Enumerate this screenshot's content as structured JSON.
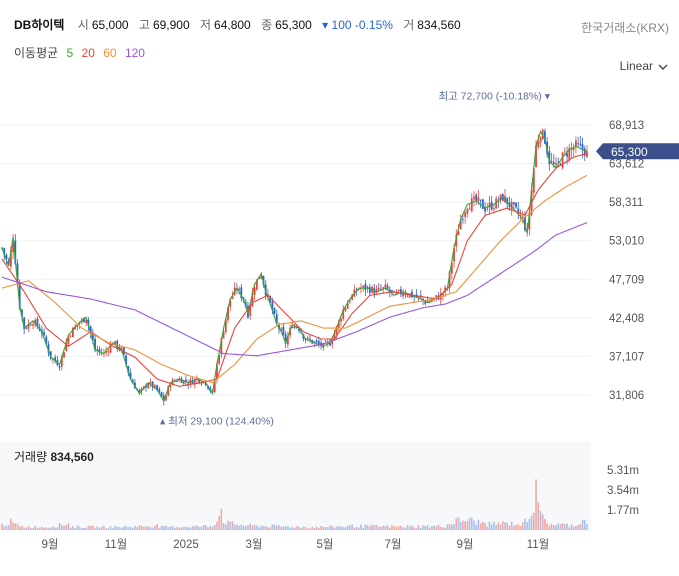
{
  "header": {
    "name": "DB하이텍",
    "open_label": "시",
    "open": "65,000",
    "high_label": "고",
    "high": "69,900",
    "low_label": "저",
    "low": "64,800",
    "close_label": "종",
    "close": "65,300",
    "change": "▾ 100 -0.15%",
    "volume_label": "거",
    "volume": "834,560",
    "exchange": "한국거래소(KRX)"
  },
  "moving_average": {
    "label": "이동평균",
    "periods": [
      {
        "value": "5",
        "color": "#3aa33a"
      },
      {
        "value": "20",
        "color": "#e8453c"
      },
      {
        "value": "60",
        "color": "#f0923a"
      },
      {
        "value": "120",
        "color": "#9b59d6"
      }
    ]
  },
  "scale_mode": "Linear",
  "volume_panel": {
    "label": "거래량",
    "value": "834,560"
  },
  "chart_data": {
    "type": "candlestick",
    "colors": {
      "up": "#e8453c",
      "down": "#2a63d4",
      "ma5": "#3aa33a",
      "ma20": "#e8453c",
      "ma60": "#f0923a",
      "ma120": "#9b59d6"
    },
    "y_ticks": [
      "68,913",
      "63,612",
      "58,311",
      "53,010",
      "47,709",
      "42,408",
      "37,107",
      "31,806"
    ],
    "y_tick_values": [
      68913,
      63612,
      58311,
      53010,
      47709,
      42408,
      37107,
      31806
    ],
    "volume_ticks": [
      "5.31m",
      "3.54m",
      "1.77m"
    ],
    "volume_tick_values": [
      5.31,
      3.54,
      1.77
    ],
    "x_ticks": [
      "9월",
      "11월",
      "2025",
      "3월",
      "5월",
      "7월",
      "9월",
      "11월"
    ],
    "last_price_label": "65,300",
    "last_price": 65300,
    "max_annotation": "최고 72,700 (-10.18%)",
    "max_value": 72700,
    "min_annotation": "최저 29,100 (124.40%)",
    "min_value": 29100,
    "price_keyframes": [
      [
        0,
        52000
      ],
      [
        3,
        49500
      ],
      [
        5,
        53500
      ],
      [
        8,
        44000
      ],
      [
        10,
        41000
      ],
      [
        14,
        42000
      ],
      [
        18,
        40500
      ],
      [
        22,
        37000
      ],
      [
        26,
        36000
      ],
      [
        30,
        40000
      ],
      [
        34,
        41500
      ],
      [
        38,
        42500
      ],
      [
        42,
        38000
      ],
      [
        46,
        37500
      ],
      [
        50,
        39000
      ],
      [
        54,
        38000
      ],
      [
        58,
        34000
      ],
      [
        62,
        32000
      ],
      [
        66,
        33500
      ],
      [
        70,
        32500
      ],
      [
        73,
        31000
      ],
      [
        76,
        33500
      ],
      [
        80,
        34000
      ],
      [
        84,
        33500
      ],
      [
        88,
        34000
      ],
      [
        92,
        33500
      ],
      [
        95,
        32000
      ],
      [
        97,
        36000
      ],
      [
        100,
        41000
      ],
      [
        103,
        45000
      ],
      [
        106,
        46500
      ],
      [
        109,
        45000
      ],
      [
        111,
        43000
      ],
      [
        114,
        47000
      ],
      [
        117,
        48500
      ],
      [
        119,
        46000
      ],
      [
        122,
        43500
      ],
      [
        124,
        41500
      ],
      [
        126,
        40500
      ],
      [
        128,
        39000
      ],
      [
        131,
        41500
      ],
      [
        134,
        41000
      ],
      [
        137,
        39500
      ],
      [
        141,
        39000
      ],
      [
        145,
        38500
      ],
      [
        148,
        39000
      ],
      [
        151,
        41000
      ],
      [
        154,
        43500
      ],
      [
        157,
        45000
      ],
      [
        161,
        46500
      ],
      [
        165,
        46500
      ],
      [
        169,
        46000
      ],
      [
        173,
        46500
      ],
      [
        177,
        45500
      ],
      [
        181,
        46000
      ],
      [
        185,
        45500
      ],
      [
        189,
        45000
      ],
      [
        192,
        44500
      ],
      [
        195,
        45000
      ],
      [
        198,
        45500
      ],
      [
        201,
        46500
      ],
      [
        204,
        52000
      ],
      [
        207,
        56000
      ],
      [
        210,
        58000
      ],
      [
        214,
        58500
      ],
      [
        218,
        57500
      ],
      [
        222,
        58000
      ],
      [
        226,
        59000
      ],
      [
        229,
        58000
      ],
      [
        232,
        57000
      ],
      [
        235,
        56000
      ],
      [
        237,
        54000
      ],
      [
        239,
        60000
      ],
      [
        241,
        66000
      ],
      [
        243,
        68000
      ],
      [
        245,
        67000
      ],
      [
        247,
        64000
      ],
      [
        250,
        63000
      ],
      [
        253,
        64500
      ],
      [
        256,
        65500
      ],
      [
        259,
        66000
      ],
      [
        262,
        65500
      ],
      [
        264,
        65300
      ]
    ],
    "ma_keyframes": {
      "ma20": [
        [
          0,
          50500
        ],
        [
          10,
          46000
        ],
        [
          20,
          41000
        ],
        [
          30,
          38500
        ],
        [
          40,
          40500
        ],
        [
          50,
          38500
        ],
        [
          60,
          37000
        ],
        [
          70,
          34000
        ],
        [
          80,
          33000
        ],
        [
          90,
          33500
        ],
        [
          97,
          34000
        ],
        [
          105,
          41000
        ],
        [
          113,
          44500
        ],
        [
          120,
          45500
        ],
        [
          128,
          43000
        ],
        [
          136,
          40500
        ],
        [
          144,
          39500
        ],
        [
          150,
          39500
        ],
        [
          158,
          43000
        ],
        [
          166,
          45500
        ],
        [
          176,
          46000
        ],
        [
          186,
          45500
        ],
        [
          196,
          45000
        ],
        [
          203,
          47000
        ],
        [
          210,
          53000
        ],
        [
          218,
          56500
        ],
        [
          228,
          57500
        ],
        [
          236,
          56500
        ],
        [
          242,
          60000
        ],
        [
          250,
          63000
        ],
        [
          258,
          64500
        ],
        [
          264,
          65000
        ]
      ],
      "ma60": [
        [
          0,
          46500
        ],
        [
          12,
          47500
        ],
        [
          24,
          44500
        ],
        [
          36,
          41000
        ],
        [
          48,
          39000
        ],
        [
          60,
          38000
        ],
        [
          72,
          36000
        ],
        [
          84,
          34500
        ],
        [
          95,
          33500
        ],
        [
          105,
          36000
        ],
        [
          115,
          39500
        ],
        [
          125,
          41500
        ],
        [
          135,
          42000
        ],
        [
          145,
          41000
        ],
        [
          155,
          41000
        ],
        [
          165,
          42500
        ],
        [
          175,
          44000
        ],
        [
          185,
          44500
        ],
        [
          195,
          45000
        ],
        [
          205,
          46000
        ],
        [
          215,
          49500
        ],
        [
          225,
          53000
        ],
        [
          235,
          56000
        ],
        [
          245,
          58500
        ],
        [
          255,
          60500
        ],
        [
          264,
          62000
        ]
      ],
      "ma120": [
        [
          0,
          48000
        ],
        [
          20,
          46000
        ],
        [
          40,
          45000
        ],
        [
          60,
          43500
        ],
        [
          80,
          40500
        ],
        [
          100,
          37500
        ],
        [
          115,
          37200
        ],
        [
          130,
          38000
        ],
        [
          145,
          38800
        ],
        [
          160,
          40500
        ],
        [
          175,
          42500
        ],
        [
          190,
          43800
        ],
        [
          200,
          44300
        ],
        [
          210,
          45500
        ],
        [
          220,
          47500
        ],
        [
          230,
          49500
        ],
        [
          240,
          51500
        ],
        [
          250,
          53800
        ],
        [
          264,
          55500
        ]
      ]
    },
    "volume_keyframes": [
      [
        0,
        0.45
      ],
      [
        4,
        0.7
      ],
      [
        8,
        0.3
      ],
      [
        20,
        0.25
      ],
      [
        30,
        0.55
      ],
      [
        31,
        0.3
      ],
      [
        45,
        0.25
      ],
      [
        60,
        0.3
      ],
      [
        70,
        0.4
      ],
      [
        71,
        0.25
      ],
      [
        95,
        0.35
      ],
      [
        99,
        1.8
      ],
      [
        100,
        0.9
      ],
      [
        102,
        0.6
      ],
      [
        110,
        0.4
      ],
      [
        120,
        0.35
      ],
      [
        140,
        0.25
      ],
      [
        150,
        0.3
      ],
      [
        160,
        0.35
      ],
      [
        180,
        0.3
      ],
      [
        200,
        0.35
      ],
      [
        205,
        0.8
      ],
      [
        210,
        0.9
      ],
      [
        220,
        0.5
      ],
      [
        225,
        0.6
      ],
      [
        235,
        0.5
      ],
      [
        240,
        2.0
      ],
      [
        241,
        5.0
      ],
      [
        242,
        3.8
      ],
      [
        243,
        1.2
      ],
      [
        246,
        0.6
      ],
      [
        250,
        0.5
      ],
      [
        258,
        0.4
      ],
      [
        263,
        0.9
      ],
      [
        264,
        0.83
      ]
    ]
  }
}
